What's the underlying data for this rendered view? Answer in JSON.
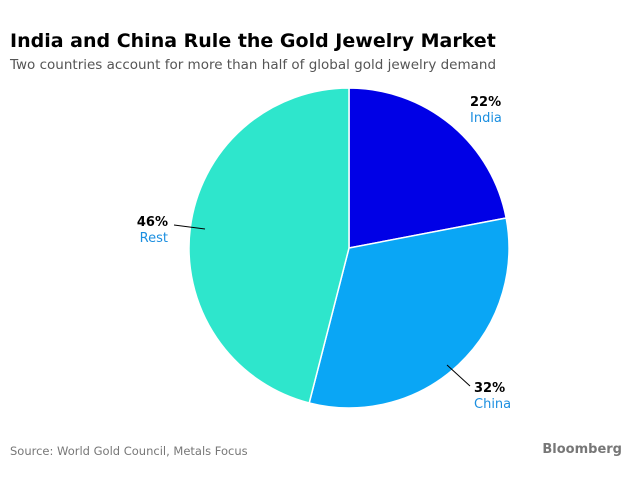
{
  "chart_data": {
    "type": "pie",
    "title": "India and China Rule the Gold Jewelry Market",
    "subtitle": "Two countries account for more than half of global gold jewelry demand",
    "slices": [
      {
        "label": "India",
        "value": 22,
        "value_label": "22%",
        "color": "#0000e6"
      },
      {
        "label": "China",
        "value": 32,
        "value_label": "32%",
        "color": "#0aa6f5"
      },
      {
        "label": "Rest",
        "value": 46,
        "value_label": "46%",
        "color": "#2ee6cc"
      }
    ],
    "source": "Source: World Gold Council, Metals Focus",
    "brand": "Bloomberg"
  }
}
